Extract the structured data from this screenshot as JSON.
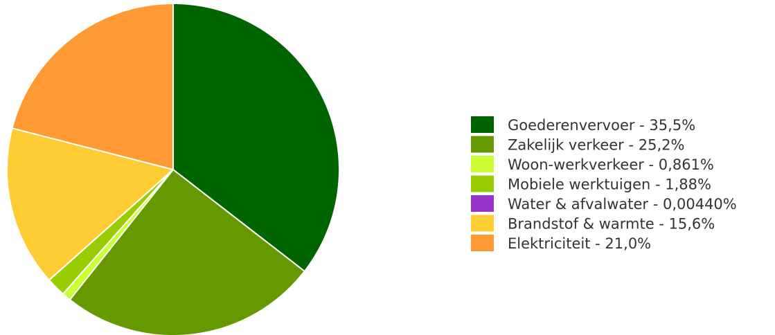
{
  "chart_data": {
    "type": "pie",
    "title": "",
    "legend_position": "right",
    "start_angle_deg": 0,
    "direction": "clockwise",
    "slices": [
      {
        "label": "Goederenvervoer - 35,5%",
        "name": "Goederenvervoer",
        "value": 35.5,
        "color": "#006400"
      },
      {
        "label": "Zakelijk verkeer - 25,2%",
        "name": "Zakelijk verkeer",
        "value": 25.2,
        "color": "#669900"
      },
      {
        "label": "Woon-werkverkeer - 0,861%",
        "name": "Woon-werkverkeer",
        "value": 0.861,
        "color": "#ccff33"
      },
      {
        "label": "Mobiele werktuigen - 1,88%",
        "name": "Mobiele werktuigen",
        "value": 1.88,
        "color": "#99cc00"
      },
      {
        "label": "Water & afvalwater - 0,00440%",
        "name": "Water & afvalwater",
        "value": 0.0044,
        "color": "#9933cc"
      },
      {
        "label": "Brandstof & warmte - 15,6%",
        "name": "Brandstof & warmte",
        "value": 15.6,
        "color": "#ffcc33"
      },
      {
        "label": "Elektriciteit - 21,0%",
        "name": "Elektriciteit",
        "value": 21.0,
        "color": "#ff9933"
      }
    ]
  }
}
